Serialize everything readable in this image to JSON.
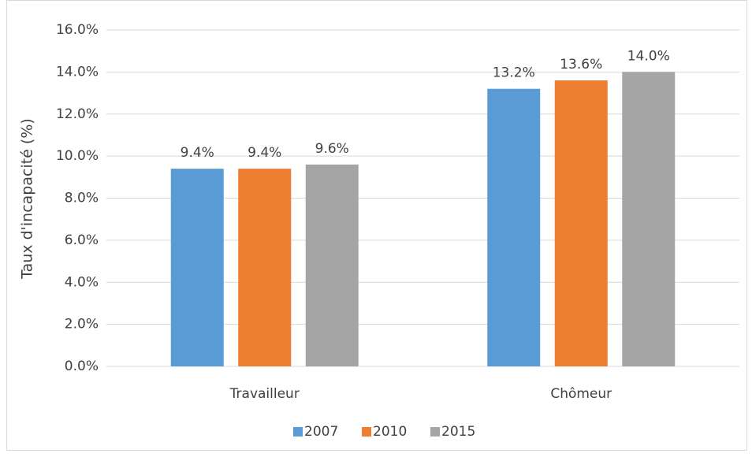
{
  "chart_data": {
    "type": "bar",
    "y_label": "Taux d'incapacité (%)",
    "categories": [
      "Travailleur",
      "Chômeur"
    ],
    "series": [
      {
        "name": "2007",
        "color": "#5b9bd5",
        "values": [
          9.4,
          13.2
        ],
        "value_labels": [
          "9.4%",
          "13.2%"
        ]
      },
      {
        "name": "2010",
        "color": "#ed7d31",
        "values": [
          9.4,
          13.6
        ],
        "value_labels": [
          "9.4%",
          "13.6%"
        ]
      },
      {
        "name": "2015",
        "color": "#a5a5a5",
        "values": [
          9.6,
          14.0
        ],
        "value_labels": [
          "9.6%",
          "14.0%"
        ]
      }
    ],
    "ylim": [
      0,
      16
    ],
    "yticks": [
      {
        "value": 0,
        "label": "0.0%"
      },
      {
        "value": 2,
        "label": "2.0%"
      },
      {
        "value": 4,
        "label": "4.0%"
      },
      {
        "value": 6,
        "label": "6.0%"
      },
      {
        "value": 8,
        "label": "8.0%"
      },
      {
        "value": 10,
        "label": "10.0%"
      },
      {
        "value": 12,
        "label": "12.0%"
      },
      {
        "value": 14,
        "label": "14.0%"
      },
      {
        "value": 16,
        "label": "16.0%"
      }
    ],
    "grid": true,
    "legend": "bottom"
  }
}
